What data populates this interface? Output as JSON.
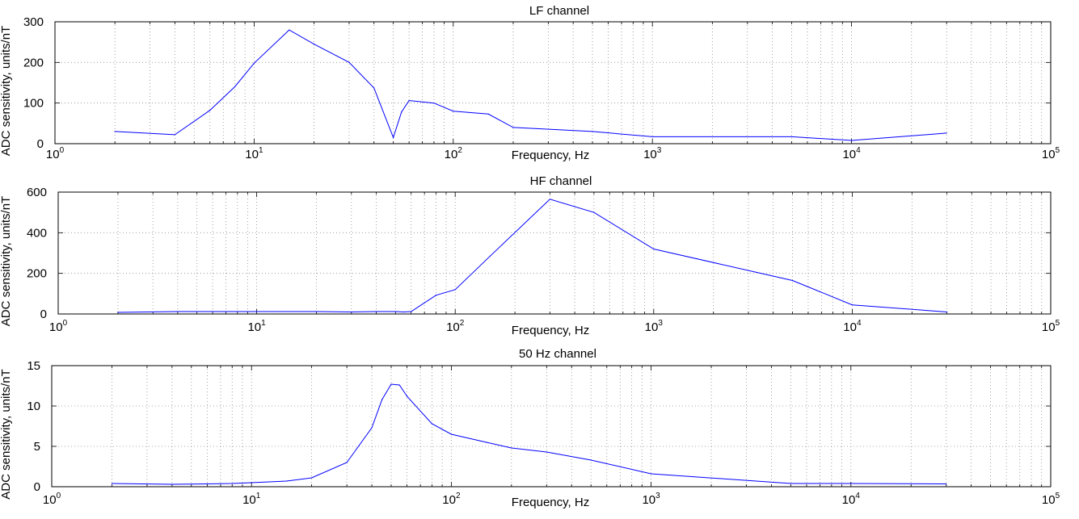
{
  "chart_data": [
    {
      "type": "line",
      "title": "LF channel",
      "xlabel": "Frequency, Hz",
      "ylabel": "ADC sensitivity, units/nT",
      "xscale": "log",
      "xlim": [
        1,
        100000
      ],
      "ylim": [
        0,
        300
      ],
      "yticks": [
        "0",
        "100",
        "200",
        "300"
      ],
      "xticks": [
        {
          "base": "10",
          "exp": "0"
        },
        {
          "base": "10",
          "exp": "1"
        },
        {
          "base": "10",
          "exp": "2"
        },
        {
          "base": "10",
          "exp": "3"
        },
        {
          "base": "10",
          "exp": "4"
        },
        {
          "base": "10",
          "exp": "5"
        }
      ],
      "grid": "dotted",
      "color": "#0000ff",
      "series": [
        {
          "x": [
            2,
            4,
            6,
            8,
            10,
            15,
            20,
            30,
            40,
            50,
            55,
            60,
            80,
            100,
            150,
            200,
            500,
            1000,
            5000,
            10000,
            30000
          ],
          "y": [
            30,
            22,
            82,
            140,
            198,
            280,
            245,
            200,
            137,
            15,
            78,
            106,
            100,
            80,
            73,
            40,
            30,
            17,
            17,
            8,
            26
          ]
        }
      ]
    },
    {
      "type": "line",
      "title": "HF channel",
      "xlabel": "Frequency, Hz",
      "ylabel": "ADC sensitivity, units/nT",
      "xscale": "log",
      "xlim": [
        1,
        100000
      ],
      "ylim": [
        0,
        600
      ],
      "yticks": [
        "0",
        "200",
        "400",
        "600"
      ],
      "xticks": [
        {
          "base": "10",
          "exp": "0"
        },
        {
          "base": "10",
          "exp": "1"
        },
        {
          "base": "10",
          "exp": "2"
        },
        {
          "base": "10",
          "exp": "3"
        },
        {
          "base": "10",
          "exp": "4"
        },
        {
          "base": "10",
          "exp": "5"
        }
      ],
      "grid": "dotted",
      "color": "#0000ff",
      "series": [
        {
          "x": [
            2,
            4,
            6,
            8,
            10,
            20,
            30,
            40,
            50,
            55,
            60,
            80,
            100,
            150,
            300,
            500,
            1000,
            5000,
            10000,
            30000
          ],
          "y": [
            8,
            12,
            12,
            12,
            12,
            12,
            10,
            12,
            12,
            10,
            12,
            92,
            120,
            285,
            565,
            500,
            320,
            165,
            45,
            10
          ]
        }
      ]
    },
    {
      "type": "line",
      "title": "50  Hz channel",
      "xlabel": "Frequency, Hz",
      "ylabel": "ADC sensitivity, units/nT",
      "xscale": "log",
      "xlim": [
        1,
        100000
      ],
      "ylim": [
        0,
        15
      ],
      "yticks": [
        "0",
        "5",
        "10",
        "15"
      ],
      "xticks": [
        {
          "base": "10",
          "exp": "0"
        },
        {
          "base": "10",
          "exp": "1"
        },
        {
          "base": "10",
          "exp": "2"
        },
        {
          "base": "10",
          "exp": "3"
        },
        {
          "base": "10",
          "exp": "4"
        },
        {
          "base": "10",
          "exp": "5"
        }
      ],
      "grid": "dotted",
      "color": "#0000ff",
      "series": [
        {
          "x": [
            2,
            4,
            6,
            8,
            10,
            15,
            20,
            30,
            40,
            45,
            50,
            55,
            60,
            80,
            100,
            150,
            200,
            300,
            500,
            1000,
            5000,
            10000,
            30000
          ],
          "y": [
            0.4,
            0.3,
            0.35,
            0.4,
            0.5,
            0.7,
            1.1,
            3.0,
            7.3,
            10.8,
            12.7,
            12.6,
            11.2,
            7.8,
            6.5,
            5.5,
            4.8,
            4.3,
            3.3,
            1.6,
            0.4,
            0.4,
            0.35
          ]
        }
      ]
    }
  ]
}
